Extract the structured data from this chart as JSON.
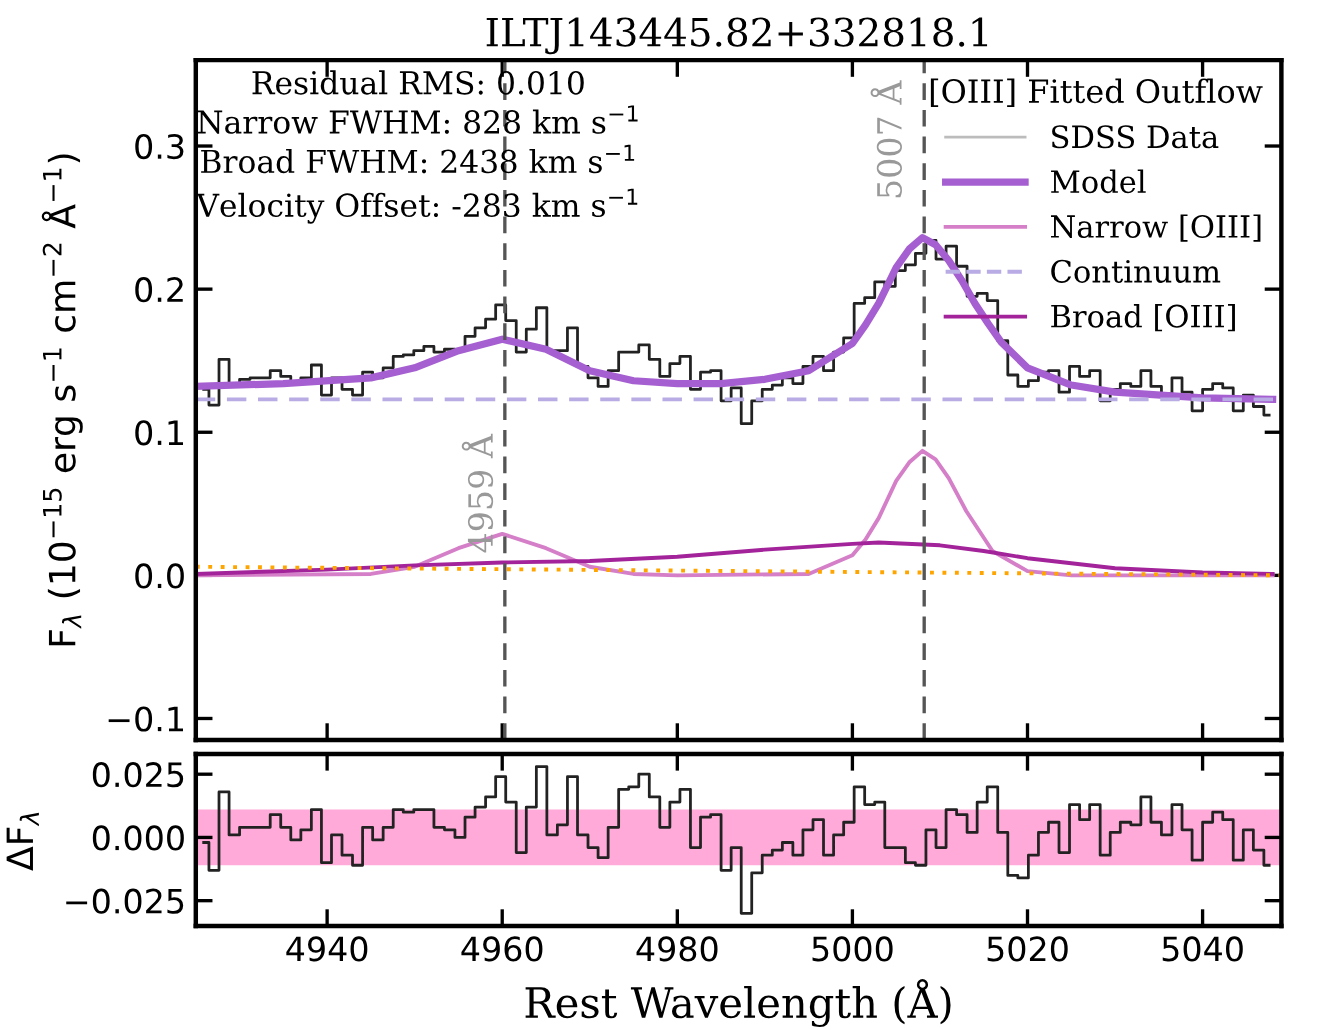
{
  "chart_data": [
    {
      "type": "line",
      "title": "ILTJ143445.82+332818.1",
      "ylabel": "F$_{λ}$ (10$^{−15}$ erg s$^{−1}$ cm$^{−2}$ Å$^{−1}$)",
      "xlim": [
        4925,
        5049
      ],
      "xticks": [
        4940,
        4960,
        4980,
        5000,
        5020,
        5040
      ],
      "ylim": [
        -0.115,
        0.36
      ],
      "yticks": [
        {
          "value": -0.1,
          "label": "−0.1"
        },
        {
          "value": 0,
          "label": "0.0"
        },
        {
          "value": 0.1,
          "label": "0.1"
        },
        {
          "value": 0.2,
          "label": "0.2"
        },
        {
          "value": 0.3,
          "label": "0.3"
        }
      ],
      "tick_labels": "y",
      "grid": false,
      "legend": "top right",
      "legend_title": "[OIII] Fitted Outflow",
      "annotations": [
        "Residual RMS: 0.010",
        "Narrow FWHM: 828 km s$^{−1}$",
        "Broad FWHM: 2438 km s$^{−1}$",
        "Velocity Offset: -283 km s$^{−1}$"
      ],
      "ref_lines": [
        {
          "axis": "x",
          "value": 4960.3,
          "label": "4959 Å",
          "color": "#555555",
          "line_style": "dashed"
        },
        {
          "axis": "x",
          "value": 5008.2,
          "label": "5007 Å",
          "color": "#555555",
          "line_style": "dashed"
        }
      ],
      "series": [
        {
          "name": "SDSS Data",
          "type": "step",
          "color": "#222222",
          "x": [
            4925.9,
            4927.1,
            4928.2,
            4929.4,
            4930.6,
            4931.8,
            4932.9,
            4934.1,
            4935.3,
            4936.4,
            4937.6,
            4938.8,
            4939.9,
            4941.1,
            4942.3,
            4943.5,
            4944.6,
            4945.8,
            4947.0,
            4948.1,
            4949.3,
            4950.5,
            4951.6,
            4952.8,
            4954.0,
            4955.2,
            4956.3,
            4957.5,
            4958.7,
            4959.8,
            4961.0,
            4962.2,
            4963.3,
            4964.5,
            4965.7,
            4966.9,
            4968.0,
            4969.2,
            4970.4,
            4971.5,
            4972.7,
            4973.9,
            4975.0,
            4976.2,
            4977.4,
            4978.6,
            4979.7,
            4980.9,
            4982.1,
            4983.2,
            4984.4,
            4985.6,
            4986.7,
            4987.9,
            4989.1,
            4990.3,
            4991.4,
            4992.6,
            4993.8,
            4994.9,
            4996.1,
            4997.3,
            4998.4,
            4999.6,
            5000.8,
            5002.0,
            5003.1,
            5004.3,
            5005.5,
            5006.6,
            5007.8,
            5009.0,
            5010.1,
            5011.3,
            5012.5,
            5013.7,
            5014.8,
            5016.0,
            5017.2,
            5018.3,
            5019.5,
            5020.7,
            5021.8,
            5023.0,
            5024.2,
            5025.4,
            5026.5,
            5027.7,
            5028.9,
            5030.0,
            5031.2,
            5032.4,
            5033.5,
            5034.7,
            5035.9,
            5037.1,
            5038.2,
            5039.4,
            5040.6,
            5041.7,
            5042.9,
            5044.1,
            5045.2,
            5046.4,
            5047.6
          ],
          "values": [
            0.13,
            0.119,
            0.151,
            0.134,
            0.137,
            0.138,
            0.138,
            0.143,
            0.139,
            0.134,
            0.138,
            0.147,
            0.126,
            0.138,
            0.13,
            0.126,
            0.142,
            0.138,
            0.145,
            0.153,
            0.154,
            0.157,
            0.16,
            0.156,
            0.158,
            0.157,
            0.167,
            0.173,
            0.179,
            0.189,
            0.178,
            0.156,
            0.172,
            0.187,
            0.157,
            0.157,
            0.173,
            0.146,
            0.138,
            0.132,
            0.143,
            0.156,
            0.156,
            0.161,
            0.151,
            0.139,
            0.148,
            0.153,
            0.13,
            0.142,
            0.143,
            0.122,
            0.131,
            0.106,
            0.122,
            0.13,
            0.133,
            0.138,
            0.134,
            0.146,
            0.153,
            0.143,
            0.156,
            0.166,
            0.19,
            0.194,
            0.205,
            0.202,
            0.213,
            0.217,
            0.225,
            0.234,
            0.221,
            0.23,
            0.216,
            0.195,
            0.197,
            0.192,
            0.164,
            0.14,
            0.132,
            0.136,
            0.142,
            0.143,
            0.128,
            0.146,
            0.139,
            0.143,
            0.122,
            0.13,
            0.134,
            0.132,
            0.143,
            0.132,
            0.127,
            0.138,
            0.128,
            0.115,
            0.13,
            0.134,
            0.131,
            0.115,
            0.126,
            0.118,
            0.112
          ]
        },
        {
          "name": "Model",
          "type": "line",
          "color": "#a55fd0",
          "x": [
            4925,
            4935,
            4945,
            4950,
            4955,
            4960,
            4965,
            4970,
            4975,
            4980,
            4985,
            4990,
            4995,
            5000,
            5001.5,
            5003,
            5005,
            5006.5,
            5008,
            5009.5,
            5011,
            5012.5,
            5014,
            5015.5,
            5017,
            5020,
            5025,
            5030,
            5040,
            5048
          ],
          "values": [
            0.132,
            0.134,
            0.138,
            0.145,
            0.157,
            0.165,
            0.158,
            0.143,
            0.136,
            0.134,
            0.134,
            0.137,
            0.143,
            0.162,
            0.175,
            0.19,
            0.215,
            0.228,
            0.236,
            0.231,
            0.22,
            0.206,
            0.19,
            0.176,
            0.163,
            0.145,
            0.133,
            0.128,
            0.124,
            0.123
          ]
        },
        {
          "name": "Narrow [OIII]",
          "type": "line",
          "color": "#d47fc8",
          "x": [
            4925,
            4945,
            4950,
            4955,
            4960,
            4965,
            4970,
            4975,
            4980,
            4995,
            5000,
            5001.5,
            5003,
            5005,
            5006.5,
            5008,
            5009.5,
            5011,
            5013,
            5016,
            5020,
            5025,
            5048
          ],
          "values": [
            0,
            0.001,
            0.006,
            0.019,
            0.029,
            0.019,
            0.006,
            0.001,
            0,
            0.001,
            0.014,
            0.025,
            0.04,
            0.066,
            0.079,
            0.087,
            0.081,
            0.068,
            0.045,
            0.017,
            0.003,
            0,
            0
          ]
        },
        {
          "name": "Continuum",
          "type": "line",
          "color": "#b9abe3",
          "line_style": "dashed",
          "x": [
            4925,
            5049
          ],
          "values": [
            0.123,
            0.123
          ]
        },
        {
          "name": "Broad [OIII]",
          "type": "line",
          "color": "#a3239a",
          "x": [
            4925,
            4940,
            4950,
            4960,
            4970,
            4980,
            4990,
            5000,
            5003,
            5010,
            5015,
            5020,
            5030,
            5040,
            5048
          ],
          "values": [
            0.001,
            0.004,
            0.007,
            0.009,
            0.01,
            0.013,
            0.018,
            0.022,
            0.023,
            0.021,
            0.017,
            0.012,
            0.005,
            0.002,
            0.001
          ]
        },
        {
          "type": "line",
          "color": "#ffa500",
          "line_style": "dotted",
          "x": [
            4925,
            5049
          ],
          "values": [
            0.006,
            0.0
          ]
        }
      ]
    },
    {
      "type": "step",
      "xlabel": "Rest Wavelength (Å)",
      "ylabel": "ΔF$_{λ}$",
      "color": "#222222",
      "xlim": [
        4925,
        5049
      ],
      "xticks": [
        4940,
        4960,
        4980,
        5000,
        5020,
        5040
      ],
      "ylim": [
        -0.035,
        0.033
      ],
      "yticks": [
        {
          "value": -0.025,
          "label": "−0.025"
        },
        {
          "value": 0,
          "label": "0.000"
        },
        {
          "value": 0.025,
          "label": "0.025"
        }
      ],
      "grid": false,
      "bands": [
        {
          "axis": "y",
          "from": -0.011,
          "to": 0.011,
          "color": "#ffaad8"
        }
      ],
      "x": [
        4925.9,
        4927.1,
        4928.2,
        4929.4,
        4930.6,
        4931.8,
        4932.9,
        4934.1,
        4935.3,
        4936.4,
        4937.6,
        4938.8,
        4939.9,
        4941.1,
        4942.3,
        4943.5,
        4944.6,
        4945.8,
        4947.0,
        4948.1,
        4949.3,
        4950.5,
        4951.6,
        4952.8,
        4954.0,
        4955.2,
        4956.3,
        4957.5,
        4958.7,
        4959.8,
        4961.0,
        4962.2,
        4963.3,
        4964.5,
        4965.7,
        4966.9,
        4968.0,
        4969.2,
        4970.4,
        4971.5,
        4972.7,
        4973.9,
        4975.0,
        4976.2,
        4977.4,
        4978.6,
        4979.7,
        4980.9,
        4982.1,
        4983.2,
        4984.4,
        4985.6,
        4986.7,
        4987.9,
        4989.1,
        4990.3,
        4991.4,
        4992.6,
        4993.8,
        4994.9,
        4996.1,
        4997.3,
        4998.4,
        4999.6,
        5000.8,
        5002.0,
        5003.1,
        5004.3,
        5005.5,
        5006.6,
        5007.8,
        5009.0,
        5010.1,
        5011.3,
        5012.5,
        5013.7,
        5014.8,
        5016.0,
        5017.2,
        5018.3,
        5019.5,
        5020.7,
        5021.8,
        5023.0,
        5024.2,
        5025.4,
        5026.5,
        5027.7,
        5028.9,
        5030.0,
        5031.2,
        5032.4,
        5033.5,
        5034.7,
        5035.9,
        5037.1,
        5038.2,
        5039.4,
        5040.6,
        5041.7,
        5042.9,
        5044.1,
        5045.2,
        5046.4,
        5047.6
      ],
      "values": [
        -0.002,
        -0.013,
        0.018,
        0.001,
        0.004,
        0.004,
        0.004,
        0.009,
        0.004,
        -0.001,
        0.003,
        0.011,
        -0.01,
        0.001,
        -0.007,
        -0.011,
        0.004,
        -0.001,
        0.004,
        0.011,
        0.01,
        0.011,
        0.011,
        0.004,
        0.003,
        0.0,
        0.008,
        0.012,
        0.016,
        0.024,
        0.014,
        -0.006,
        0.012,
        0.028,
        0.001,
        0.005,
        0.024,
        0.001,
        -0.004,
        -0.008,
        0.004,
        0.019,
        0.02,
        0.025,
        0.016,
        0.004,
        0.014,
        0.019,
        -0.004,
        0.008,
        0.009,
        -0.013,
        -0.004,
        -0.03,
        -0.014,
        -0.007,
        -0.005,
        -0.002,
        -0.007,
        0.003,
        0.007,
        -0.007,
        0.001,
        0.006,
        0.02,
        0.013,
        0.014,
        -0.004,
        -0.004,
        -0.01,
        -0.011,
        0.003,
        -0.004,
        0.011,
        0.009,
        0.002,
        0.014,
        0.02,
        0.002,
        -0.015,
        -0.016,
        -0.007,
        0.002,
        0.006,
        -0.006,
        0.013,
        0.007,
        0.013,
        -0.007,
        0.002,
        0.006,
        0.005,
        0.016,
        0.006,
        0.001,
        0.013,
        0.003,
        -0.009,
        0.006,
        0.01,
        0.007,
        -0.009,
        0.003,
        -0.005,
        -0.011
      ]
    }
  ]
}
